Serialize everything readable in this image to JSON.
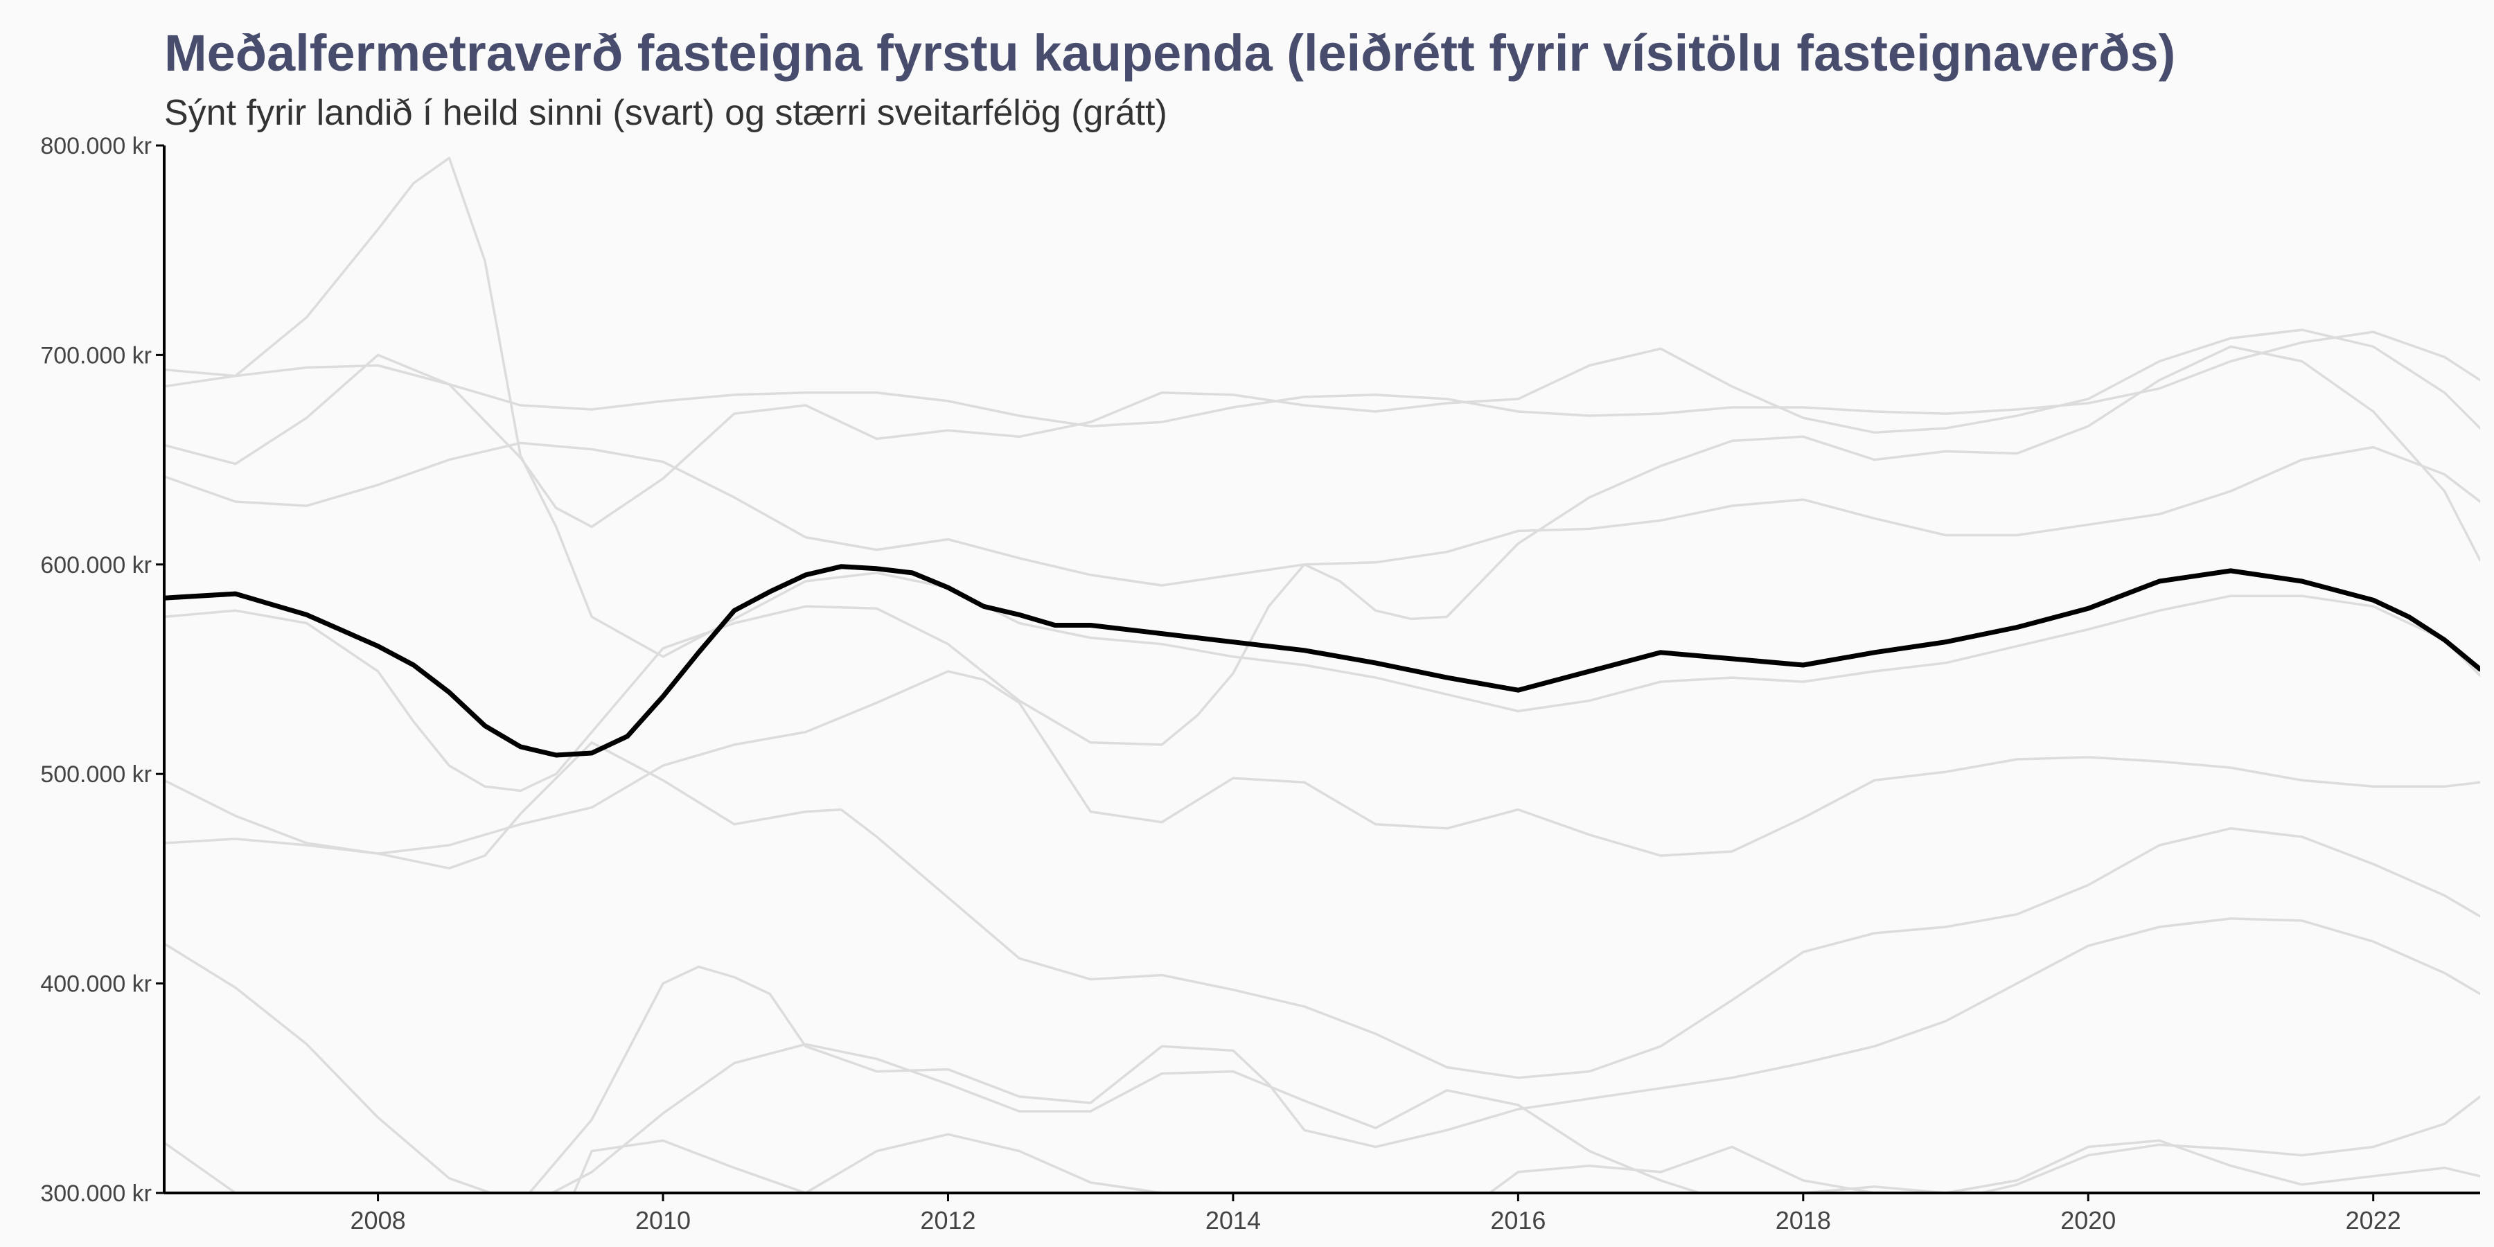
{
  "chart_data": {
    "type": "line",
    "title": "Meðalfermetraverð fasteigna fyrstu kaupenda (leiðrétt fyrir vísitölu fasteignaverðs)",
    "subtitle": "Sýnt fyrir landið í heild sinni (svart) og stærri sveitarfélög (grátt)",
    "xlabel": "",
    "ylabel": "",
    "xlim": [
      2006.5,
      2022.75
    ],
    "ylim": [
      300000,
      800000
    ],
    "x_ticks": [
      2008,
      2010,
      2012,
      2014,
      2016,
      2018,
      2020,
      2022
    ],
    "x_tick_labels": [
      "2008",
      "2010",
      "2012",
      "2014",
      "2016",
      "2018",
      "2020",
      "2022"
    ],
    "y_ticks": [
      300000,
      400000,
      500000,
      600000,
      700000,
      800000
    ],
    "y_tick_labels": [
      "300.000 kr",
      "400.000 kr",
      "500.000 kr",
      "600.000 kr",
      "700.000 kr",
      "800.000 kr"
    ],
    "grid": false,
    "legend": "none",
    "colors": {
      "highlight": "#000000",
      "muted": "#dcdcdc",
      "title": "#484d6d"
    },
    "series": [
      {
        "role": "highlight",
        "x": [
          2006.5,
          2007.0,
          2007.5,
          2008.0,
          2008.25,
          2008.5,
          2008.75,
          2009.0,
          2009.25,
          2009.5,
          2009.75,
          2010.0,
          2010.25,
          2010.5,
          2010.75,
          2011.0,
          2011.25,
          2011.5,
          2011.75,
          2012.0,
          2012.25,
          2012.5,
          2012.75,
          2013.0,
          2013.5,
          2014.0,
          2014.5,
          2015.0,
          2015.5,
          2016.0,
          2016.5,
          2017.0,
          2017.5,
          2018.0,
          2018.5,
          2019.0,
          2019.5,
          2020.0,
          2020.5,
          2021.0,
          2021.5,
          2022.0,
          2022.25,
          2022.5,
          2022.75
        ],
        "y": [
          584000,
          586000,
          576000,
          561000,
          552000,
          539000,
          523000,
          513000,
          509000,
          510000,
          518000,
          537000,
          558000,
          578000,
          587000,
          595000,
          599000,
          598000,
          596000,
          589000,
          580000,
          576000,
          571000,
          571000,
          567000,
          563000,
          559000,
          553000,
          546000,
          540000,
          549000,
          558000,
          555000,
          552000,
          558000,
          563000,
          570000,
          579000,
          592000,
          597000,
          592000,
          583000,
          575000,
          564000,
          550000
        ]
      },
      {
        "role": "muted",
        "x": [
          2006.5,
          2007.0,
          2007.5,
          2008.0,
          2008.25,
          2008.5,
          2008.75,
          2009.0,
          2009.25,
          2009.5,
          2010.0,
          2010.5,
          2011.0,
          2011.5,
          2012.0,
          2012.5,
          2013.0,
          2013.5,
          2014.0,
          2014.5,
          2015.0,
          2015.5,
          2016.0,
          2016.5,
          2017.0,
          2017.5,
          2018.0,
          2018.5,
          2019.0,
          2019.5,
          2020.0,
          2020.5,
          2021.0,
          2021.5,
          2022.0,
          2022.5,
          2022.75
        ],
        "y": [
          685000,
          690000,
          718000,
          760000,
          782000,
          794000,
          745000,
          652000,
          618000,
          575000,
          556000,
          574000,
          592000,
          596000,
          589000,
          572000,
          565000,
          562000,
          556000,
          552000,
          546000,
          538000,
          530000,
          535000,
          544000,
          546000,
          544000,
          549000,
          553000,
          561000,
          569000,
          578000,
          585000,
          585000,
          580000,
          564000,
          547000
        ]
      },
      {
        "role": "muted",
        "x": [
          2006.5,
          2007.0,
          2007.5,
          2008.0,
          2008.5,
          2009.0,
          2009.5,
          2010.0,
          2010.5,
          2011.0,
          2011.5,
          2012.0,
          2012.5,
          2013.0,
          2013.5,
          2014.0,
          2014.5,
          2015.0,
          2015.5,
          2016.0,
          2016.5,
          2017.0,
          2017.5,
          2018.0,
          2018.5,
          2019.0,
          2019.5,
          2020.0,
          2020.5,
          2021.0,
          2021.5,
          2022.0,
          2022.5,
          2022.75
        ],
        "y": [
          693000,
          690000,
          694000,
          695000,
          686000,
          676000,
          674000,
          678000,
          681000,
          682000,
          682000,
          678000,
          671000,
          666000,
          668000,
          675000,
          680000,
          681000,
          679000,
          673000,
          671000,
          672000,
          675000,
          675000,
          673000,
          672000,
          674000,
          677000,
          684000,
          697000,
          706000,
          711000,
          699000,
          688000
        ]
      },
      {
        "role": "muted",
        "x": [
          2006.5,
          2007.0,
          2007.5,
          2008.0,
          2008.5,
          2009.0,
          2009.25,
          2009.5,
          2010.0,
          2010.5,
          2011.0,
          2011.5,
          2012.0,
          2012.5,
          2013.0,
          2013.5,
          2014.0,
          2014.5,
          2015.0,
          2015.5,
          2016.0,
          2016.5,
          2017.0,
          2017.5,
          2018.0,
          2018.5,
          2019.0,
          2019.5,
          2020.0,
          2020.5,
          2021.0,
          2021.5,
          2022.0,
          2022.5,
          2022.75
        ],
        "y": [
          657000,
          648000,
          670000,
          700000,
          686000,
          651000,
          627000,
          618000,
          641000,
          672000,
          676000,
          660000,
          664000,
          661000,
          668000,
          682000,
          681000,
          676000,
          673000,
          677000,
          679000,
          695000,
          703000,
          685000,
          670000,
          663000,
          665000,
          671000,
          679000,
          697000,
          708000,
          712000,
          704000,
          682000,
          665000
        ]
      },
      {
        "role": "muted",
        "x": [
          2006.5,
          2007.0,
          2007.5,
          2008.0,
          2008.5,
          2009.0,
          2009.5,
          2010.0,
          2010.5,
          2011.0,
          2011.5,
          2012.0,
          2012.5,
          2013.0,
          2013.5,
          2014.0,
          2014.5,
          2015.0,
          2015.5,
          2016.0,
          2016.5,
          2017.0,
          2017.5,
          2018.0,
          2018.5,
          2019.0,
          2019.5,
          2020.0,
          2020.5,
          2021.0,
          2021.5,
          2022.0,
          2022.5,
          2022.75
        ],
        "y": [
          642000,
          630000,
          628000,
          638000,
          650000,
          658000,
          655000,
          649000,
          632000,
          613000,
          607000,
          612000,
          603000,
          595000,
          590000,
          595000,
          600000,
          601000,
          606000,
          616000,
          617000,
          621000,
          628000,
          631000,
          622000,
          614000,
          614000,
          619000,
          624000,
          635000,
          650000,
          656000,
          643000,
          630000
        ]
      },
      {
        "role": "muted",
        "x": [
          2006.5,
          2007.0,
          2007.5,
          2008.0,
          2008.25,
          2008.5,
          2008.75,
          2009.0,
          2009.25,
          2009.5,
          2010.0,
          2010.5,
          2011.0,
          2011.5,
          2012.0,
          2012.5,
          2013.0,
          2013.5,
          2013.75,
          2014.0,
          2014.25,
          2014.5,
          2014.75,
          2015.0,
          2015.25,
          2015.5,
          2016.0,
          2016.5,
          2017.0,
          2017.5,
          2018.0,
          2018.5,
          2019.0,
          2019.5,
          2020.0,
          2020.5,
          2021.0,
          2021.5,
          2022.0,
          2022.5,
          2022.75
        ],
        "y": [
          575000,
          578000,
          572000,
          549000,
          525000,
          504000,
          494000,
          492000,
          500000,
          520000,
          560000,
          572000,
          580000,
          579000,
          562000,
          535000,
          515000,
          514000,
          528000,
          548000,
          580000,
          600000,
          592000,
          578000,
          574000,
          575000,
          610000,
          632000,
          647000,
          659000,
          661000,
          650000,
          654000,
          653000,
          666000,
          688000,
          704000,
          697000,
          673000,
          635000,
          602000
        ]
      },
      {
        "role": "muted",
        "x": [
          2006.5,
          2007.0,
          2007.5,
          2008.0,
          2008.5,
          2008.75,
          2009.0,
          2009.5,
          2010.0,
          2010.5,
          2011.0,
          2011.25,
          2011.5,
          2012.0,
          2012.5,
          2013.0,
          2013.5,
          2014.0,
          2014.5,
          2015.0,
          2015.5,
          2016.0,
          2016.5,
          2017.0,
          2017.5,
          2018.0,
          2018.5,
          2019.0,
          2019.5,
          2020.0,
          2020.5,
          2021.0,
          2021.5,
          2022.0,
          2022.5,
          2022.75
        ],
        "y": [
          497000,
          480000,
          467000,
          462000,
          455000,
          461000,
          481000,
          515000,
          497000,
          476000,
          482000,
          483000,
          470000,
          441000,
          412000,
          402000,
          404000,
          397000,
          389000,
          376000,
          360000,
          355000,
          358000,
          370000,
          392000,
          415000,
          424000,
          427000,
          433000,
          447000,
          466000,
          474000,
          470000,
          457000,
          442000,
          432000
        ]
      },
      {
        "role": "muted",
        "x": [
          2006.5,
          2007.0,
          2007.5,
          2008.0,
          2008.5,
          2009.0,
          2009.5,
          2010.0,
          2010.5,
          2011.0,
          2011.5,
          2012.0,
          2012.25,
          2012.5,
          2013.0,
          2013.5,
          2014.0,
          2014.5,
          2015.0,
          2015.5,
          2016.0,
          2016.5,
          2017.0,
          2017.5,
          2018.0,
          2018.5,
          2019.0,
          2019.5,
          2020.0,
          2020.5,
          2021.0,
          2021.5,
          2022.0,
          2022.5,
          2022.75
        ],
        "y": [
          467000,
          469000,
          466000,
          462000,
          466000,
          476000,
          484000,
          504000,
          514000,
          520000,
          534000,
          549000,
          545000,
          534000,
          482000,
          477000,
          498000,
          496000,
          476000,
          474000,
          483000,
          471000,
          461000,
          463000,
          479000,
          497000,
          501000,
          507000,
          508000,
          506000,
          503000,
          497000,
          494000,
          494000,
          496000
        ]
      },
      {
        "role": "muted",
        "x": [
          2006.5,
          2007.0,
          2007.5,
          2008.0,
          2008.5,
          2009.0,
          2009.5,
          2010.0,
          2010.25,
          2010.5,
          2010.75,
          2011.0,
          2011.5,
          2012.0,
          2012.5,
          2013.0,
          2013.5,
          2014.0,
          2014.25,
          2014.5,
          2015.0,
          2015.5,
          2016.0,
          2016.5,
          2017.0,
          2017.5,
          2018.0,
          2018.5,
          2019.0,
          2019.5,
          2020.0,
          2020.5,
          2021.0,
          2021.5,
          2022.0,
          2022.5,
          2022.75
        ],
        "y": [
          419000,
          398000,
          371000,
          336000,
          307000,
          295000,
          335000,
          400000,
          408000,
          403000,
          395000,
          370000,
          358000,
          359000,
          346000,
          343000,
          370000,
          368000,
          352000,
          330000,
          322000,
          330000,
          340000,
          345000,
          350000,
          355000,
          362000,
          370000,
          382000,
          400000,
          418000,
          427000,
          431000,
          430000,
          420000,
          405000,
          395000
        ]
      },
      {
        "role": "muted",
        "x": [
          2006.5,
          2007.0,
          2007.5,
          2008.0,
          2008.5,
          2009.0,
          2009.25,
          2009.5,
          2010.0,
          2010.5,
          2011.0,
          2011.5,
          2012.0,
          2012.5,
          2013.0,
          2013.5,
          2014.0,
          2014.5,
          2015.0,
          2015.5,
          2016.0,
          2016.5,
          2017.0,
          2017.5,
          2018.0,
          2018.5,
          2019.0,
          2019.5,
          2020.0,
          2020.5,
          2021.0,
          2021.5,
          2022.0,
          2022.5,
          2022.75
        ],
        "y": [
          324000,
          300000,
          285000,
          275000,
          270000,
          265000,
          280000,
          320000,
          325000,
          312000,
          300000,
          320000,
          328000,
          320000,
          305000,
          300000,
          296000,
          296000,
          290000,
          285000,
          310000,
          313000,
          310000,
          322000,
          306000,
          300000,
          296000,
          304000,
          318000,
          323000,
          321000,
          318000,
          322000,
          333000,
          346000
        ]
      },
      {
        "role": "muted",
        "x": [
          2006.5,
          2007.0,
          2007.5,
          2008.0,
          2008.5,
          2009.0,
          2009.5,
          2010.0,
          2010.5,
          2011.0,
          2011.5,
          2012.0,
          2012.5,
          2013.0,
          2013.5,
          2014.0,
          2014.5,
          2015.0,
          2015.5,
          2016.0,
          2016.5,
          2017.0,
          2017.5,
          2018.0,
          2018.5,
          2019.0,
          2019.5,
          2020.0,
          2020.5,
          2021.0,
          2021.5,
          2022.0,
          2022.5,
          2022.75
        ],
        "y": [
          290000,
          290000,
          290000,
          292000,
          290000,
          292000,
          310000,
          338000,
          362000,
          371000,
          364000,
          352000,
          339000,
          339000,
          357000,
          358000,
          344000,
          331000,
          349000,
          342000,
          320000,
          306000,
          295000,
          300000,
          303000,
          300000,
          306000,
          322000,
          325000,
          313000,
          304000,
          308000,
          312000,
          308000
        ]
      }
    ]
  }
}
